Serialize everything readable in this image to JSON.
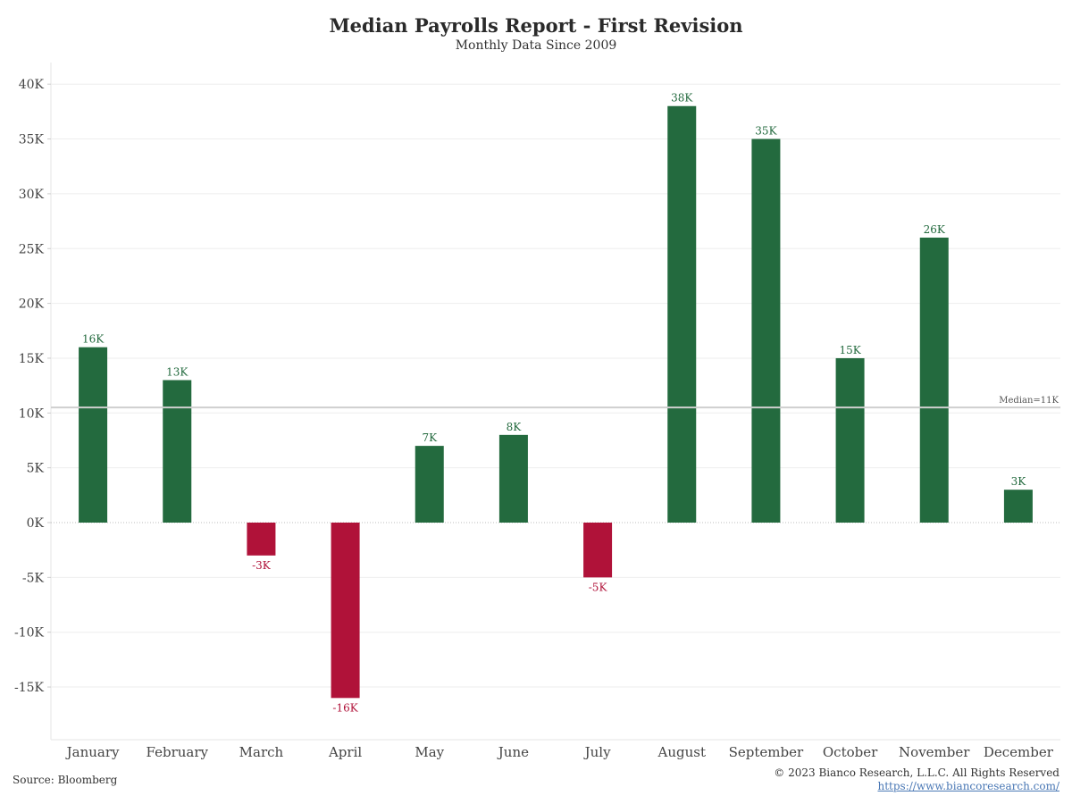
{
  "header": {
    "title": "Median Payrolls Report - First Revision",
    "subtitle": "Monthly Data Since 2009"
  },
  "footer": {
    "source": "Source: Bloomberg",
    "copyright": "© 2023 Bianco Research, L.L.C. All Rights Reserved",
    "url": "https://www.biancoresearch.com/"
  },
  "colors": {
    "positive": "#236a3e",
    "negative": "#b01239",
    "median_line": "#cfcfcf",
    "grid": "#eeeeee",
    "zero_line": "#bdbdbd"
  },
  "chart_data": {
    "type": "bar",
    "title": "Median Payrolls Report - First Revision",
    "subtitle": "Monthly Data Since 2009",
    "categories": [
      "January",
      "February",
      "March",
      "April",
      "May",
      "June",
      "July",
      "August",
      "September",
      "October",
      "November",
      "December"
    ],
    "values": [
      16,
      13,
      -3,
      -16,
      7,
      8,
      -5,
      38,
      35,
      15,
      26,
      3
    ],
    "data_labels": [
      "16K",
      "13K",
      "-3K",
      "-16K",
      "7K",
      "8K",
      "-5K",
      "38K",
      "35K",
      "15K",
      "26K",
      "3K"
    ],
    "unit": "K",
    "ylim": [
      -20,
      42
    ],
    "yticks": [
      -15,
      -10,
      -5,
      0,
      5,
      10,
      15,
      20,
      25,
      30,
      35,
      40
    ],
    "ytick_labels": [
      "-15K",
      "-10K",
      "-5K",
      "0K",
      "5K",
      "10K",
      "15K",
      "20K",
      "25K",
      "30K",
      "35K",
      "40K"
    ],
    "reference_line": {
      "value": 10.5,
      "label": "Median=11K"
    },
    "grid": true,
    "legend": "none"
  }
}
